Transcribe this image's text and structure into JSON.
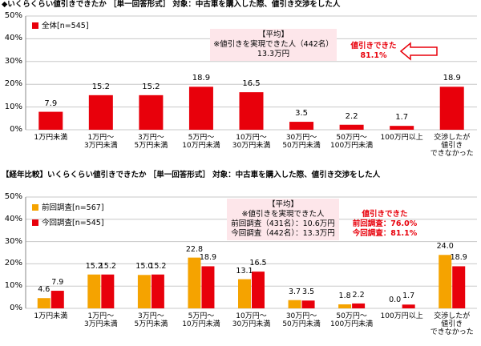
{
  "chart_data": [
    {
      "type": "bar",
      "title": "◆いくらくらい値引きできたか ［単一回答形式］ 対象：中古車を購入した際、値引き交渉をした人",
      "categories": [
        "1万円未満",
        "1万円～\n3万円未満",
        "3万円～\n5万円未満",
        "5万円～\n10万円未満",
        "10万円～\n30万円未満",
        "30万円～\n50万円未満",
        "50万円～\n100万円未満",
        "100万円以上",
        "交渉したが\n値引き\nできなかった"
      ],
      "series": [
        {
          "name": "全体[n=545]",
          "color": "#e8000b",
          "values": [
            7.9,
            15.2,
            15.2,
            18.9,
            16.5,
            3.5,
            2.2,
            1.7,
            18.9
          ]
        }
      ],
      "ylim": [
        0,
        50
      ],
      "yticks": [
        {
          "value": 0,
          "label": "0%"
        },
        {
          "value": 10,
          "label": "10%"
        },
        {
          "value": 20,
          "label": "20%"
        },
        {
          "value": 30,
          "label": "30%"
        },
        {
          "value": 40,
          "label": "40%"
        },
        {
          "value": 50,
          "label": "50%"
        }
      ],
      "grid": true,
      "annotations": [
        "【平均】\n※値引きを実現できた人（442名）\n13.3万円",
        "値引きできた\n81.1%"
      ]
    },
    {
      "type": "bar",
      "title": "【経年比較】いくらくらい値引きできたか ［単一回答形式］ 対象：中古車を購入した際、値引き交渉をした人",
      "categories": [
        "1万円未満",
        "1万円～\n3万円未満",
        "3万円～\n5万円未満",
        "5万円～\n10万円未満",
        "10万円～\n30万円未満",
        "30万円～\n50万円未満",
        "50万円～\n100万円未満",
        "100万円以上",
        "交渉したが\n値引き\nできなかった"
      ],
      "series": [
        {
          "name": "前回調査[n=567]",
          "color": "#f5a300",
          "values": [
            4.6,
            15.2,
            15.0,
            22.8,
            13.1,
            3.7,
            1.8,
            0.0,
            24.0
          ],
          "value_labels": [
            "4.6",
            "15.2",
            "15.0",
            "22.8",
            "13.1",
            "3.7",
            "1.8",
            "0.0",
            "24.0"
          ]
        },
        {
          "name": "今回調査[n=545]",
          "color": "#e8000b",
          "values": [
            7.9,
            15.2,
            15.2,
            18.9,
            16.5,
            3.5,
            2.2,
            1.7,
            18.9
          ]
        }
      ],
      "ylim": [
        0,
        50
      ],
      "yticks": [
        {
          "value": 0,
          "label": "0%"
        },
        {
          "value": 10,
          "label": "10%"
        },
        {
          "value": 20,
          "label": "20%"
        },
        {
          "value": 30,
          "label": "30%"
        },
        {
          "value": 40,
          "label": "40%"
        },
        {
          "value": 50,
          "label": "50%"
        }
      ],
      "grid": true,
      "annotations": [
        "【平均】\n※値引きを実現できた人\n前回調査（431名）：10.6万円\n今回調査（442名）：13.3万円",
        "値引きできた\n前回調査：76.0%\n今回調査：81.1%"
      ]
    }
  ]
}
